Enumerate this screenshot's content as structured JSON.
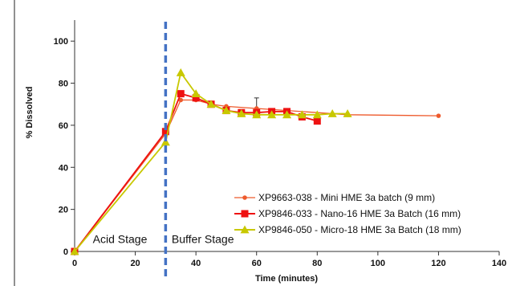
{
  "chart_data": {
    "type": "line",
    "title": "",
    "xlabel": "Time (minutes)",
    "ylabel": "% Dissolved",
    "xlim": [
      0,
      140
    ],
    "ylim": [
      0,
      110
    ],
    "x_ticks": [
      0,
      20,
      40,
      60,
      80,
      100,
      120,
      140
    ],
    "y_ticks": [
      0,
      20,
      40,
      60,
      80,
      100
    ],
    "grid": false,
    "legend_position": "bottom-right",
    "annotations": [
      {
        "text": "Acid Stage",
        "x": 6,
        "y": 4
      },
      {
        "text": "Buffer Stage",
        "x": 32,
        "y": 4
      }
    ],
    "reference_line": {
      "x": 30,
      "style": "dashed",
      "color": "#4472c4"
    },
    "series": [
      {
        "name": "XP9663-038 - Mini HME 3a batch (9 mm)",
        "color": "#ee5a2c",
        "marker": "circle",
        "x": [
          0,
          30,
          35,
          40,
          45,
          50,
          60,
          90,
          120
        ],
        "y": [
          0,
          56,
          72,
          72,
          70,
          69,
          68,
          65,
          64.5
        ],
        "error_bars": [
          {
            "x": 60,
            "y": 68,
            "plus": 5
          }
        ]
      },
      {
        "name": "XP9846-033 - Nano-16 HME 3a Batch (16 mm)",
        "color": "#ee1111",
        "marker": "square",
        "x": [
          0,
          30,
          35,
          40,
          45,
          50,
          55,
          60,
          65,
          70,
          75,
          80
        ],
        "y": [
          0,
          57,
          75,
          73,
          70,
          67,
          66,
          66,
          66.5,
          66.5,
          64,
          62
        ]
      },
      {
        "name": "XP9846-050 - Micro-18 HME 3a Batch (18 mm)",
        "color": "#c8c800",
        "marker": "triangle",
        "x": [
          0,
          30,
          35,
          40,
          45,
          50,
          55,
          60,
          65,
          70,
          75,
          80,
          85,
          90
        ],
        "y": [
          0,
          52,
          85,
          75,
          70,
          67,
          65.5,
          65,
          65,
          65,
          65,
          65,
          65.5,
          65.5
        ]
      }
    ]
  }
}
